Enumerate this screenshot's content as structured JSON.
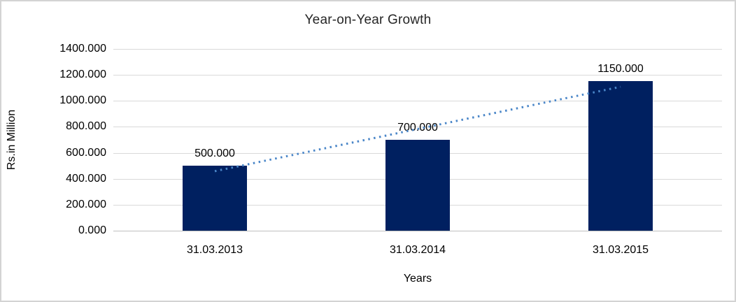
{
  "chart_data": {
    "type": "bar",
    "title": "Year-on-Year Growth",
    "xlabel": "Years",
    "ylabel": "Rs.in Million",
    "categories": [
      "31.03.2013",
      "31.03.2014",
      "31.03.2015"
    ],
    "values": [
      500,
      700,
      1150
    ],
    "data_labels": [
      "500.000",
      "700.000",
      "1150.000"
    ],
    "ytick_labels": [
      "0.000",
      "200.000",
      "400.000",
      "600.000",
      "800.000",
      "1000.000",
      "1200.000",
      "1400.000"
    ],
    "ytick_values": [
      0,
      200,
      400,
      600,
      800,
      1000,
      1200,
      1400
    ],
    "ylim": [
      0,
      1400
    ],
    "grid": true,
    "legend_position": "none",
    "trendline": {
      "type": "linear",
      "style": "dotted",
      "fit_values": [
        458.3,
        783.3,
        1108.3
      ],
      "color": "#4a86c8"
    },
    "colors": {
      "bar": "#002060",
      "gridline": "#d9d9d9",
      "baseline": "#bfbfbf",
      "text": "#000000",
      "frame_border": "#d3d3d3",
      "background": "#ffffff"
    }
  }
}
